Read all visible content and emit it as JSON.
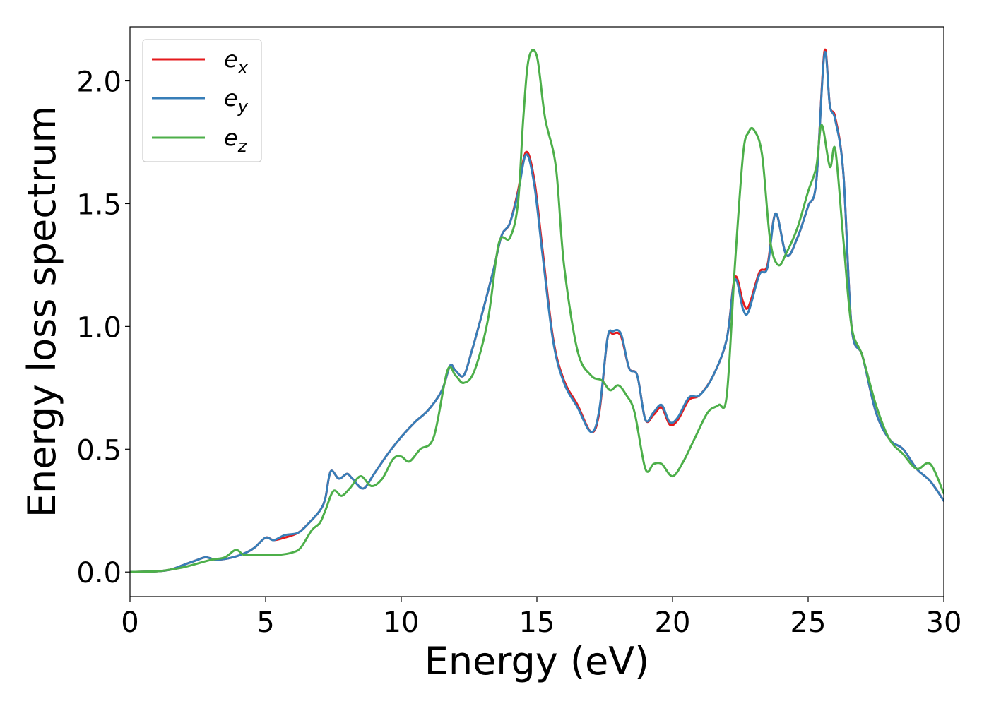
{
  "chart_data": {
    "type": "line",
    "title": "",
    "xlabel": "Energy (eV)",
    "ylabel": "Energy loss spectrum",
    "xlim": [
      0,
      30
    ],
    "ylim": [
      -0.1,
      2.22
    ],
    "xticks": [
      0,
      5,
      10,
      15,
      20,
      25,
      30
    ],
    "xtick_labels": [
      "0",
      "5",
      "10",
      "15",
      "20",
      "25",
      "30"
    ],
    "yticks": [
      0.0,
      0.5,
      1.0,
      1.5,
      2.0
    ],
    "ytick_labels": [
      "0.0",
      "0.5",
      "1.0",
      "1.5",
      "2.0"
    ],
    "grid": false,
    "legend_position": "upper-left",
    "series": [
      {
        "name": "e_x",
        "label_base": "e",
        "label_sub": "x",
        "color": "#e41a1c",
        "x": [
          0,
          1,
          1.5,
          2,
          2.5,
          2.8,
          3.2,
          3.8,
          4.3,
          4.6,
          5.0,
          5.3,
          5.7,
          6.2,
          6.6,
          7.0,
          7.2,
          7.4,
          7.7,
          8.0,
          8.2,
          8.6,
          9.0,
          9.5,
          10.0,
          10.5,
          11.0,
          11.5,
          11.8,
          12.0,
          12.3,
          12.6,
          13.0,
          13.4,
          13.7,
          14.0,
          14.3,
          14.6,
          14.9,
          15.2,
          15.6,
          16.0,
          16.5,
          17.0,
          17.3,
          17.6,
          17.8,
          18.1,
          18.4,
          18.7,
          19.0,
          19.3,
          19.6,
          19.9,
          20.2,
          20.6,
          21.0,
          21.5,
          22.0,
          22.3,
          22.6,
          22.8,
          23.2,
          23.5,
          23.8,
          24.2,
          24.6,
          25.0,
          25.3,
          25.6,
          25.8,
          26.0,
          26.3,
          26.6,
          27.0,
          27.5,
          28.0,
          28.5,
          29.0,
          29.5,
          30.0
        ],
        "values": [
          0.0,
          0.003,
          0.01,
          0.03,
          0.05,
          0.06,
          0.05,
          0.06,
          0.08,
          0.1,
          0.14,
          0.13,
          0.14,
          0.16,
          0.2,
          0.25,
          0.3,
          0.41,
          0.38,
          0.4,
          0.38,
          0.34,
          0.4,
          0.48,
          0.55,
          0.61,
          0.66,
          0.74,
          0.84,
          0.82,
          0.8,
          0.9,
          1.06,
          1.23,
          1.37,
          1.42,
          1.55,
          1.71,
          1.6,
          1.32,
          0.95,
          0.78,
          0.68,
          0.57,
          0.65,
          0.95,
          0.97,
          0.96,
          0.83,
          0.8,
          0.62,
          0.64,
          0.67,
          0.6,
          0.62,
          0.7,
          0.72,
          0.8,
          0.95,
          1.2,
          1.1,
          1.08,
          1.22,
          1.25,
          1.46,
          1.29,
          1.36,
          1.49,
          1.59,
          2.12,
          1.9,
          1.85,
          1.62,
          1.0,
          0.88,
          0.65,
          0.54,
          0.5,
          0.42,
          0.37,
          0.29
        ]
      },
      {
        "name": "e_y",
        "label_base": "e",
        "label_sub": "y",
        "color": "#377eb8",
        "x": [
          0,
          1,
          1.5,
          2,
          2.5,
          2.8,
          3.2,
          3.8,
          4.3,
          4.6,
          5.0,
          5.3,
          5.7,
          6.2,
          6.6,
          7.0,
          7.2,
          7.4,
          7.7,
          8.0,
          8.2,
          8.6,
          9.0,
          9.5,
          10.0,
          10.5,
          11.0,
          11.5,
          11.8,
          12.0,
          12.3,
          12.6,
          13.0,
          13.4,
          13.7,
          14.0,
          14.3,
          14.6,
          14.9,
          15.2,
          15.6,
          16.0,
          16.5,
          17.0,
          17.3,
          17.6,
          17.8,
          18.1,
          18.4,
          18.7,
          19.0,
          19.3,
          19.6,
          19.9,
          20.2,
          20.6,
          21.0,
          21.5,
          22.0,
          22.3,
          22.6,
          22.8,
          23.2,
          23.5,
          23.8,
          24.2,
          24.6,
          25.0,
          25.3,
          25.6,
          25.8,
          26.0,
          26.3,
          26.6,
          27.0,
          27.5,
          28.0,
          28.5,
          29.0,
          29.5,
          30.0
        ],
        "values": [
          0.0,
          0.003,
          0.01,
          0.03,
          0.05,
          0.06,
          0.05,
          0.06,
          0.08,
          0.1,
          0.14,
          0.13,
          0.15,
          0.16,
          0.2,
          0.25,
          0.3,
          0.41,
          0.38,
          0.4,
          0.38,
          0.34,
          0.4,
          0.48,
          0.55,
          0.61,
          0.66,
          0.74,
          0.84,
          0.82,
          0.8,
          0.9,
          1.06,
          1.23,
          1.37,
          1.42,
          1.54,
          1.7,
          1.58,
          1.3,
          0.94,
          0.77,
          0.67,
          0.57,
          0.66,
          0.95,
          0.98,
          0.97,
          0.83,
          0.8,
          0.62,
          0.65,
          0.68,
          0.61,
          0.63,
          0.71,
          0.72,
          0.8,
          0.95,
          1.19,
          1.07,
          1.06,
          1.21,
          1.24,
          1.46,
          1.29,
          1.36,
          1.49,
          1.59,
          2.11,
          1.9,
          1.84,
          1.62,
          1.0,
          0.88,
          0.65,
          0.54,
          0.5,
          0.42,
          0.37,
          0.29
        ]
      },
      {
        "name": "e_z",
        "label_base": "e",
        "label_sub": "z",
        "color": "#4daf4a",
        "x": [
          0,
          1,
          1.5,
          2,
          2.5,
          3.0,
          3.5,
          3.9,
          4.2,
          4.6,
          5.0,
          5.5,
          6.0,
          6.3,
          6.7,
          7.0,
          7.2,
          7.5,
          7.8,
          8.1,
          8.5,
          8.9,
          9.3,
          9.7,
          10.0,
          10.3,
          10.7,
          11.2,
          11.7,
          12.0,
          12.3,
          12.7,
          13.2,
          13.6,
          14.0,
          14.3,
          14.5,
          14.7,
          15.0,
          15.3,
          15.7,
          16.0,
          16.5,
          17.0,
          17.4,
          17.7,
          18.0,
          18.3,
          18.6,
          19.0,
          19.3,
          19.6,
          20.0,
          20.4,
          20.8,
          21.3,
          21.7,
          22.0,
          22.3,
          22.6,
          22.8,
          23.0,
          23.3,
          23.6,
          23.9,
          24.2,
          24.6,
          25.0,
          25.3,
          25.5,
          25.8,
          26.0,
          26.3,
          26.6,
          27.0,
          27.5,
          28.0,
          28.5,
          29.0,
          29.5,
          30.0
        ],
        "values": [
          0.0,
          0.003,
          0.01,
          0.02,
          0.035,
          0.05,
          0.06,
          0.09,
          0.07,
          0.07,
          0.07,
          0.07,
          0.08,
          0.1,
          0.17,
          0.2,
          0.25,
          0.33,
          0.31,
          0.34,
          0.39,
          0.35,
          0.38,
          0.46,
          0.47,
          0.45,
          0.5,
          0.55,
          0.82,
          0.8,
          0.77,
          0.82,
          1.03,
          1.34,
          1.36,
          1.5,
          1.85,
          2.09,
          2.1,
          1.85,
          1.65,
          1.25,
          0.9,
          0.8,
          0.78,
          0.74,
          0.76,
          0.72,
          0.65,
          0.42,
          0.44,
          0.44,
          0.39,
          0.45,
          0.54,
          0.65,
          0.68,
          0.72,
          1.25,
          1.7,
          1.79,
          1.8,
          1.7,
          1.35,
          1.25,
          1.3,
          1.4,
          1.55,
          1.65,
          1.82,
          1.65,
          1.72,
          1.35,
          1.0,
          0.88,
          0.68,
          0.54,
          0.48,
          0.42,
          0.44,
          0.32
        ]
      }
    ]
  }
}
